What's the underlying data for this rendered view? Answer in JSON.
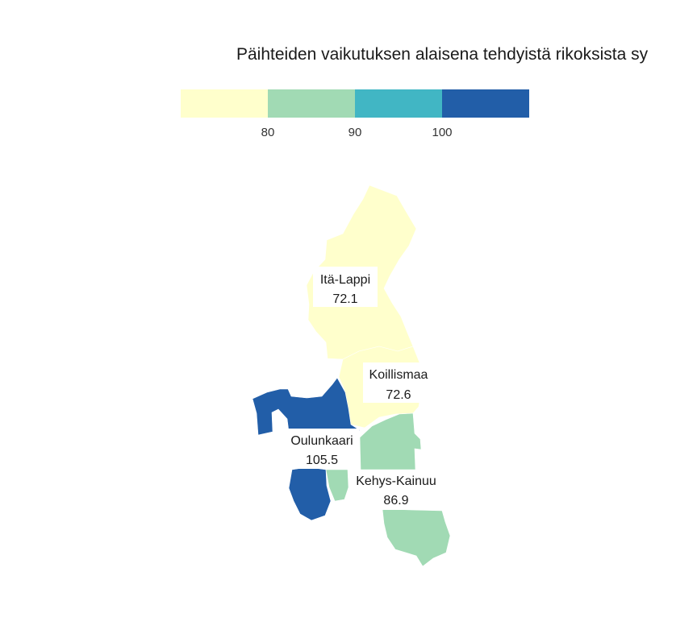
{
  "title": "Päihteiden vaikutuksen alaisena tehdyistä rikoksista sy",
  "legend": {
    "bins": [
      {
        "color": "#ffffcc"
      },
      {
        "color": "#a1dab4"
      },
      {
        "color": "#41b6c4"
      },
      {
        "color": "#225ea8"
      }
    ],
    "ticks": [
      "80",
      "90",
      "100"
    ]
  },
  "regions": [
    {
      "name": "Itä-Lappi",
      "value": "72.1",
      "color": "#ffffcc"
    },
    {
      "name": "Koillismaa",
      "value": "72.6",
      "color": "#ffffcc"
    },
    {
      "name": "Oulunkaari",
      "value": "105.5",
      "color": "#225ea8"
    },
    {
      "name": "Kehys-Kainuu",
      "value": "86.9",
      "color": "#a1dab4"
    }
  ]
}
